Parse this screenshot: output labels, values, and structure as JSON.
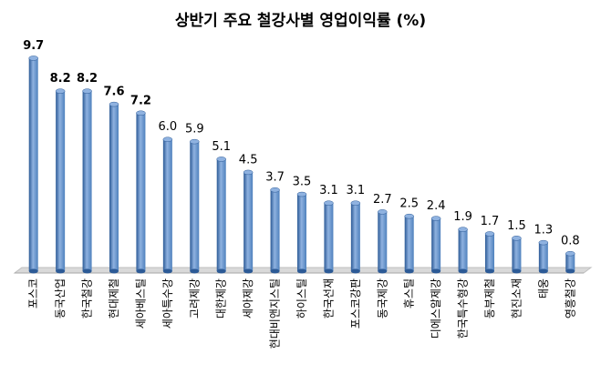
{
  "chart_data": {
    "type": "bar",
    "title": "상반기 주요 철강사별 영업이익률 (%)",
    "xlabel": "",
    "ylabel": "",
    "ylim": [
      0,
      10
    ],
    "grid": false,
    "legend": "none",
    "colors": {
      "bar": "#4f81bd",
      "bar_dark": "#2c5a96",
      "bar_light": "#8fb2e0",
      "floor": "#d9d9d9"
    },
    "categories": [
      "포스코",
      "동국산업",
      "한국철강",
      "현대제철",
      "세아베스틸",
      "세아특수강",
      "고려제강",
      "대한제강",
      "세아제강",
      "현대비앤지스틸",
      "하이스틸",
      "한국선재",
      "포스코강판",
      "동국제강",
      "휴스틸",
      "디에스알제강",
      "한국특수형강",
      "동부제철",
      "현진소재",
      "태웅",
      "영흥철강"
    ],
    "values": [
      9.7,
      8.2,
      8.2,
      7.6,
      7.2,
      6.0,
      5.9,
      5.1,
      4.5,
      3.7,
      3.5,
      3.1,
      3.1,
      2.7,
      2.5,
      2.4,
      1.9,
      1.7,
      1.5,
      1.3,
      0.8
    ],
    "data_labels": [
      "9.7",
      "8.2",
      "8.2",
      "7.6",
      "7.2",
      "6.0",
      "5.9",
      "5.1",
      "4.5",
      "3.7",
      "3.5",
      "3.1",
      "3.1",
      "2.7",
      "2.5",
      "2.4",
      "1.9",
      "1.7",
      "1.5",
      "1.3",
      "0.8"
    ],
    "bold_label_count": 5
  }
}
